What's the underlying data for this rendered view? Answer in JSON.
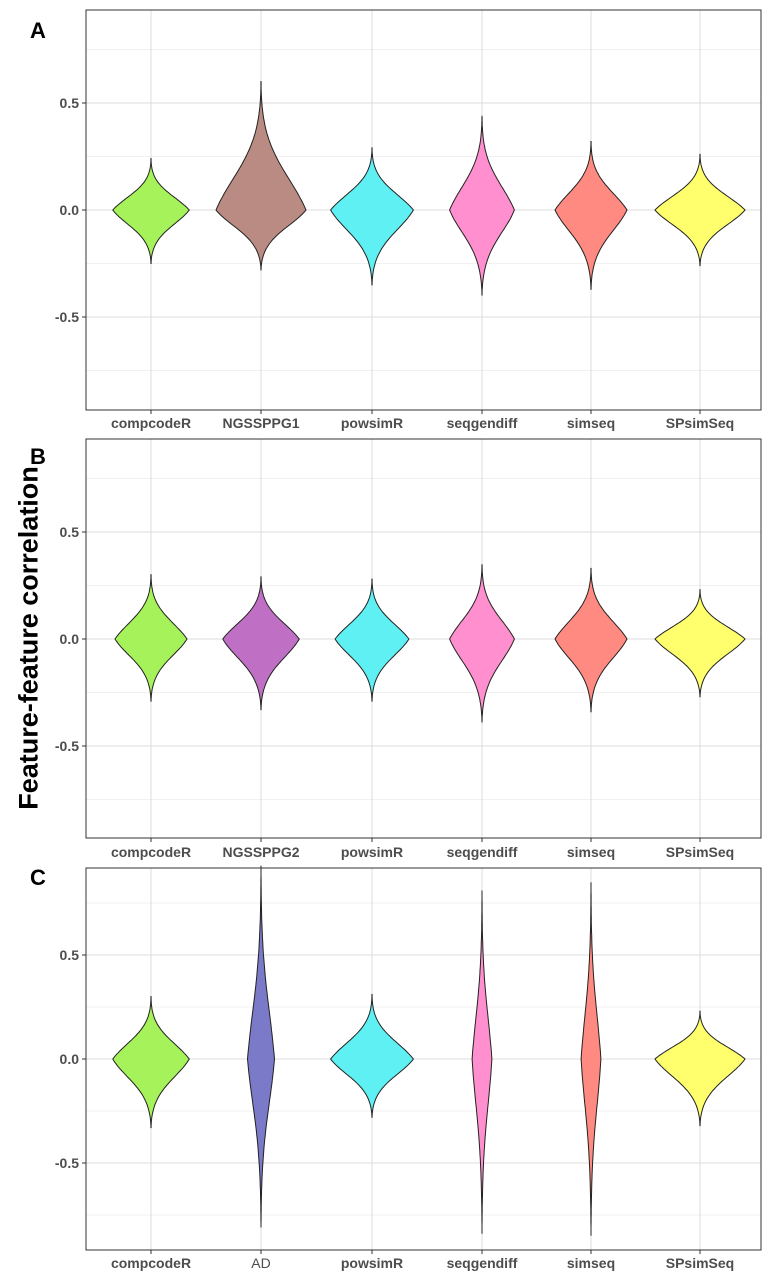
{
  "figure": {
    "ylabel": "Feature-feature correlation"
  },
  "chart_data": [
    {
      "type": "violin",
      "panel_label": "A",
      "ylabel": "Feature-feature correlation",
      "ylim": [
        -0.9,
        0.93
      ],
      "yticks": [
        -0.5,
        0.0,
        0.5
      ],
      "ytick_labels": [
        "-0.5",
        "0.0",
        "0.5"
      ],
      "grid": true,
      "categories": [
        "compcodeR",
        "NGSSPPG1",
        "powsimR",
        "seqgendiff",
        "simseq",
        "SPsimSeq"
      ],
      "series": [
        {
          "name": "compcodeR",
          "color": "#a6f25a",
          "min": -0.25,
          "max": 0.24,
          "width_scale": 0.85
        },
        {
          "name": "NGSSPPG1",
          "color": "#b98b82",
          "min": -0.28,
          "max": 0.6,
          "width_scale": 1.0
        },
        {
          "name": "powsimR",
          "color": "#5ff0f4",
          "min": -0.35,
          "max": 0.29,
          "width_scale": 0.92
        },
        {
          "name": "seqgendiff",
          "color": "#ff8fcf",
          "min": -0.4,
          "max": 0.44,
          "width_scale": 0.72
        },
        {
          "name": "simseq",
          "color": "#ff8a82",
          "min": -0.37,
          "max": 0.32,
          "width_scale": 0.8
        },
        {
          "name": "SPsimSeq",
          "color": "#ffff6e",
          "min": -0.26,
          "max": 0.26,
          "width_scale": 1.0
        }
      ]
    },
    {
      "type": "violin",
      "panel_label": "B",
      "ylabel": "Feature-feature correlation",
      "ylim": [
        -0.93,
        0.92
      ],
      "yticks": [
        -0.5,
        0.0,
        0.5
      ],
      "ytick_labels": [
        "-0.5",
        "0.0",
        "0.5"
      ],
      "grid": true,
      "categories": [
        "compcodeR",
        "NGSSPPG2",
        "powsimR",
        "seqgendiff",
        "simseq",
        "SPsimSeq"
      ],
      "series": [
        {
          "name": "compcodeR",
          "color": "#a6f25a",
          "min": -0.29,
          "max": 0.3,
          "width_scale": 0.8
        },
        {
          "name": "NGSSPPG2",
          "color": "#c070c4",
          "min": -0.33,
          "max": 0.29,
          "width_scale": 0.85
        },
        {
          "name": "powsimR",
          "color": "#5ff0f4",
          "min": -0.29,
          "max": 0.28,
          "width_scale": 0.82
        },
        {
          "name": "seqgendiff",
          "color": "#ff8fcf",
          "min": -0.39,
          "max": 0.35,
          "width_scale": 0.72
        },
        {
          "name": "simseq",
          "color": "#ff8a82",
          "min": -0.34,
          "max": 0.33,
          "width_scale": 0.8
        },
        {
          "name": "SPsimSeq",
          "color": "#ffff6e",
          "min": -0.27,
          "max": 0.23,
          "width_scale": 1.0
        }
      ]
    },
    {
      "type": "violin",
      "panel_label": "C",
      "ylabel": "Feature-feature correlation",
      "ylim": [
        -0.9,
        0.93
      ],
      "yticks": [
        -0.5,
        0.0,
        0.5
      ],
      "ytick_labels": [
        "-0.5",
        "0.0",
        "0.5"
      ],
      "grid": true,
      "categories": [
        "compcodeR",
        "AD",
        "powsimR",
        "seqgendiff",
        "simseq",
        "SPsimSeq"
      ],
      "series": [
        {
          "name": "compcodeR",
          "color": "#a6f25a",
          "min": -0.33,
          "max": 0.3,
          "width_scale": 0.85
        },
        {
          "name": "AD",
          "color": "#7a7ac8",
          "min": -0.81,
          "max": 0.93,
          "width_scale": 0.3
        },
        {
          "name": "powsimR",
          "color": "#5ff0f4",
          "min": -0.28,
          "max": 0.31,
          "width_scale": 0.92
        },
        {
          "name": "seqgendiff",
          "color": "#ff8fcf",
          "min": -0.84,
          "max": 0.81,
          "width_scale": 0.22
        },
        {
          "name": "simseq",
          "color": "#ff8a82",
          "min": -0.85,
          "max": 0.85,
          "width_scale": 0.22
        },
        {
          "name": "SPsimSeq",
          "color": "#ffff6e",
          "min": -0.32,
          "max": 0.23,
          "width_scale": 1.0
        }
      ]
    }
  ]
}
